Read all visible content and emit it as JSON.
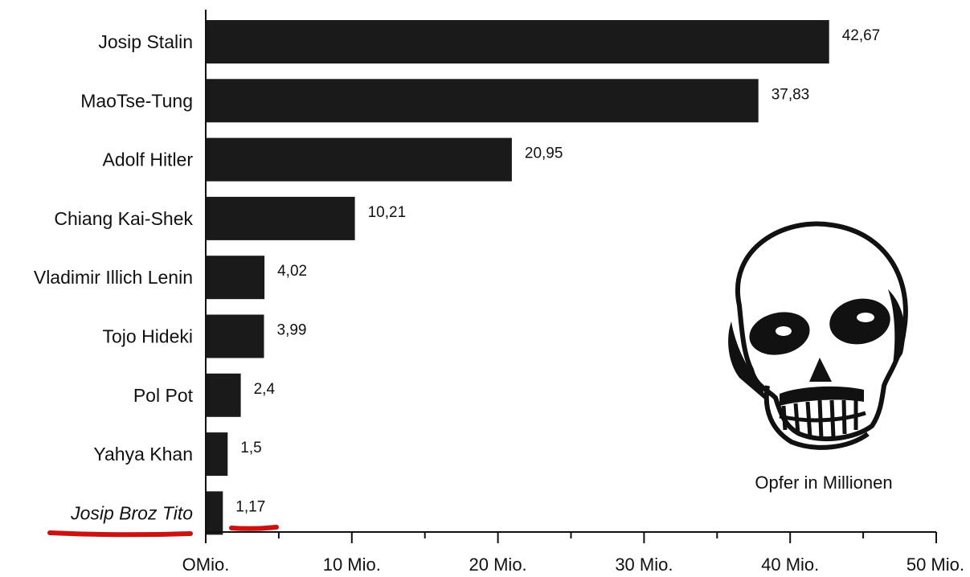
{
  "chart_data": {
    "type": "bar",
    "orientation": "horizontal",
    "categories": [
      "Josip Stalin",
      "MaoTse-Tung",
      "Adolf Hitler",
      "Chiang Kai-Shek",
      "Vladimir Illich Lenin",
      "Tojo Hideki",
      "Pol Pot",
      "Yahya Khan",
      "Josip Broz Tito"
    ],
    "values": [
      42.67,
      37.83,
      20.95,
      10.21,
      4.02,
      3.99,
      2.4,
      1.5,
      1.17
    ],
    "value_labels": [
      "42,67",
      "37,83",
      "20,95",
      "10,21",
      "4,02",
      "3,99",
      "2,4",
      "1,5",
      "1,17"
    ],
    "x_ticks": [
      0,
      10,
      20,
      30,
      40,
      50
    ],
    "x_tick_labels": [
      "OMio.",
      "10 Mio.",
      "20 Mio.",
      "30 Mio.",
      "40 Mio.",
      "50 Mio."
    ],
    "xlim": [
      0,
      50
    ],
    "grid": false,
    "annotation": "Opfer in Millionen",
    "highlighted_category": "Josip Broz Tito",
    "bar_color": "#1a1a1a",
    "highlight_color": "#cc1111"
  }
}
